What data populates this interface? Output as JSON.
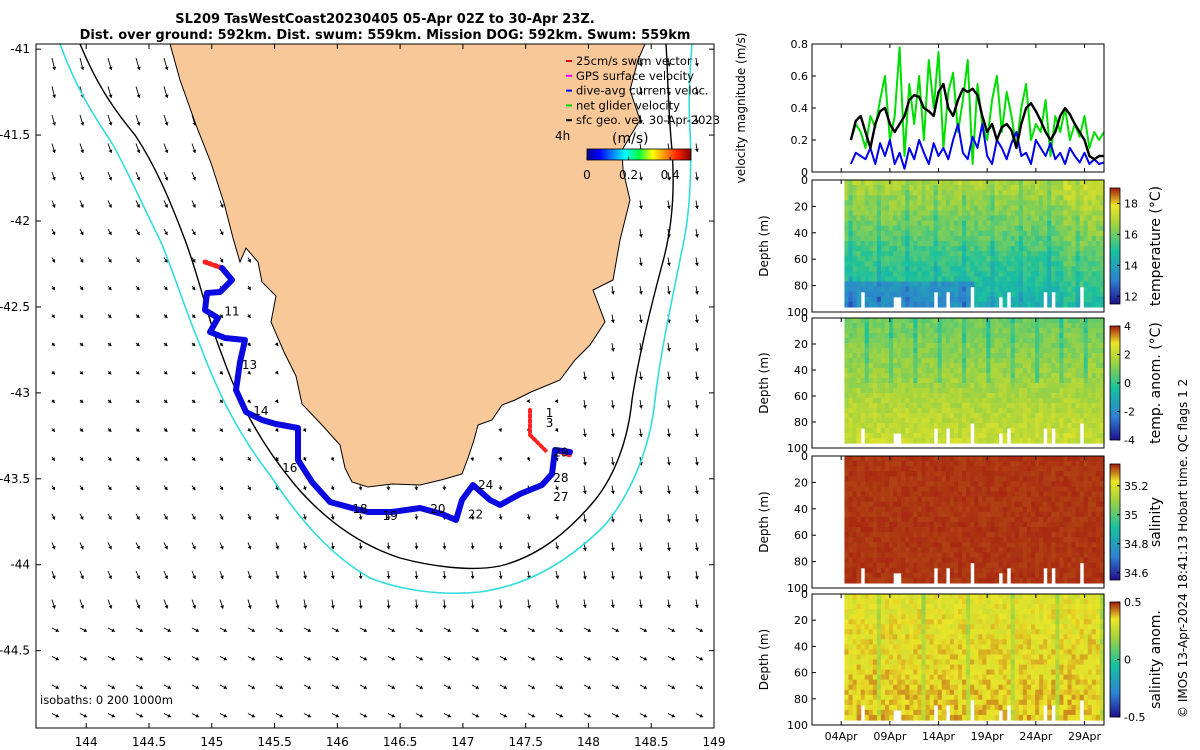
{
  "chart_data": [
    {
      "type": "map",
      "title_line1": "SL209 TasWestCoast20230405 05-Apr 02Z to 30-Apr 23Z.",
      "title_line2": "Dist. over ground: 592km. Dist. swum: 559km. Mission DOG: 592km. Swum: 559km",
      "xticks": [
        "144",
        "144.5",
        "145",
        "145.5",
        "146",
        "146.5",
        "147",
        "147.5",
        "148",
        "148.5",
        "149"
      ],
      "yticks": [
        "-41",
        "-41.5",
        "-42",
        "-42.5",
        "-43",
        "-43.5",
        "-44",
        "-44.5"
      ],
      "xlim": [
        143.6,
        149.0
      ],
      "ylim": [
        -44.95,
        -40.97
      ],
      "legend": [
        {
          "label": "25cm/s swim vector",
          "color": "#e8000b"
        },
        {
          "label": "GPS surface velocity",
          "color": "#ff00ff"
        },
        {
          "label": "dive-avg current veloc.",
          "color": "#0000ff"
        },
        {
          "label": "net glider velocity",
          "color": "#00cc00"
        },
        {
          "label": "sfc geo. vel. 30-Apr-2023",
          "color": "#000000"
        }
      ],
      "time_label": "4h",
      "colorbar": {
        "label": "(m/s)",
        "ticks": [
          "0",
          "0.2",
          "0.4"
        ],
        "range": [
          0,
          0.5
        ]
      },
      "day_labels": [
        {
          "day": "11",
          "lon": 145.1,
          "lat": -42.55
        },
        {
          "day": "13",
          "lon": 145.24,
          "lat": -42.86
        },
        {
          "day": "14",
          "lon": 145.33,
          "lat": -43.13
        },
        {
          "day": "16",
          "lon": 145.56,
          "lat": -43.46
        },
        {
          "day": "18",
          "lon": 146.12,
          "lat": -43.7
        },
        {
          "day": "19",
          "lon": 146.36,
          "lat": -43.74
        },
        {
          "day": "20",
          "lon": 146.74,
          "lat": -43.7
        },
        {
          "day": "22",
          "lon": 147.04,
          "lat": -43.73
        },
        {
          "day": "24",
          "lon": 147.12,
          "lat": -43.56
        },
        {
          "day": "27",
          "lon": 147.72,
          "lat": -43.63
        },
        {
          "day": "28",
          "lon": 147.72,
          "lat": -43.52
        },
        {
          "day": "29",
          "lon": 147.72,
          "lat": -43.37
        },
        {
          "day": "1",
          "lon": 147.66,
          "lat": -43.14
        },
        {
          "day": "3",
          "lon": 147.66,
          "lat": -43.2
        }
      ],
      "isobath_label": "isobaths: 0   200  1000m"
    },
    {
      "type": "line",
      "ylabel": "velocity magnitude (m/s)",
      "ylim": [
        0,
        0.8
      ],
      "yticks": [
        "0",
        "0.2",
        "0.4",
        "0.6",
        "0.8"
      ],
      "xlim_days": [
        1,
        31
      ],
      "series": [
        {
          "name": "net glider velocity",
          "color": "#00dd00",
          "x": [
            5.0,
            5.5,
            6.0,
            6.5,
            7.0,
            7.5,
            8.0,
            8.5,
            9.0,
            9.5,
            10.0,
            10.5,
            11.0,
            11.5,
            12.0,
            12.5,
            13.0,
            13.5,
            14.0,
            14.5,
            15.0,
            15.5,
            16.0,
            16.5,
            17.0,
            17.5,
            18.0,
            18.5,
            19.0,
            19.5,
            20.0,
            20.5,
            21.0,
            21.5,
            22.0,
            22.5,
            23.0,
            23.5,
            24.0,
            24.5,
            25.0,
            25.5,
            26.0,
            26.5,
            27.0,
            27.5,
            28.0,
            28.5,
            29.0,
            29.5,
            30.0,
            30.5,
            31.0
          ],
          "values": [
            0.2,
            0.3,
            0.25,
            0.15,
            0.35,
            0.28,
            0.45,
            0.6,
            0.2,
            0.35,
            0.78,
            0.1,
            0.55,
            0.3,
            0.6,
            0.2,
            0.7,
            0.4,
            0.75,
            0.15,
            0.5,
            0.62,
            0.25,
            0.45,
            0.7,
            0.05,
            0.55,
            0.3,
            0.2,
            0.45,
            0.6,
            0.25,
            0.5,
            0.35,
            0.15,
            0.4,
            0.55,
            0.2,
            0.3,
            0.25,
            0.45,
            0.1,
            0.35,
            0.25,
            0.4,
            0.2,
            0.3,
            0.22,
            0.35,
            0.15,
            0.25,
            0.2,
            0.25
          ]
        },
        {
          "name": "dive-avg current veloc.",
          "color": "#0000ee",
          "x": [
            5.0,
            5.5,
            6.0,
            6.5,
            7.0,
            7.5,
            8.0,
            8.5,
            9.0,
            9.5,
            10.0,
            10.5,
            11.0,
            11.5,
            12.0,
            12.5,
            13.0,
            13.5,
            14.0,
            14.5,
            15.0,
            15.5,
            16.0,
            16.5,
            17.0,
            17.5,
            18.0,
            18.5,
            19.0,
            19.5,
            20.0,
            20.5,
            21.0,
            21.5,
            22.0,
            22.5,
            23.0,
            23.5,
            24.0,
            24.5,
            25.0,
            25.5,
            26.0,
            26.5,
            27.0,
            27.5,
            28.0,
            28.5,
            29.0,
            29.5,
            30.0,
            30.5,
            31.0
          ],
          "values": [
            0.05,
            0.12,
            0.1,
            0.08,
            0.15,
            0.05,
            0.18,
            0.1,
            0.2,
            0.05,
            0.12,
            0.02,
            0.15,
            0.08,
            0.2,
            0.12,
            0.05,
            0.18,
            0.1,
            0.15,
            0.08,
            0.2,
            0.3,
            0.12,
            0.08,
            0.22,
            0.15,
            0.3,
            0.1,
            0.05,
            0.2,
            0.15,
            0.08,
            0.18,
            0.25,
            0.1,
            0.12,
            0.05,
            0.2,
            0.15,
            0.1,
            0.18,
            0.08,
            0.12,
            0.05,
            0.15,
            0.1,
            0.06,
            0.12,
            0.05,
            0.08,
            0.05,
            0.06
          ]
        },
        {
          "name": "sfc geo. vel.",
          "color": "#000000",
          "x": [
            5.0,
            5.5,
            6.0,
            6.5,
            7.0,
            7.5,
            8.0,
            8.5,
            9.0,
            9.5,
            10.0,
            10.5,
            11.0,
            11.5,
            12.0,
            12.5,
            13.0,
            13.5,
            14.0,
            14.5,
            15.0,
            15.5,
            16.0,
            16.5,
            17.0,
            17.5,
            18.0,
            18.5,
            19.0,
            19.5,
            20.0,
            20.5,
            21.0,
            21.5,
            22.0,
            22.5,
            23.0,
            23.5,
            24.0,
            24.5,
            25.0,
            25.5,
            26.0,
            26.5,
            27.0,
            27.5,
            28.0,
            28.5,
            29.0,
            29.5,
            30.0,
            30.5,
            31.0
          ],
          "values": [
            0.2,
            0.32,
            0.35,
            0.25,
            0.15,
            0.3,
            0.38,
            0.4,
            0.3,
            0.25,
            0.3,
            0.35,
            0.45,
            0.48,
            0.47,
            0.4,
            0.38,
            0.35,
            0.5,
            0.55,
            0.4,
            0.35,
            0.45,
            0.52,
            0.5,
            0.52,
            0.48,
            0.35,
            0.25,
            0.3,
            0.2,
            0.28,
            0.3,
            0.26,
            0.15,
            0.3,
            0.4,
            0.43,
            0.38,
            0.32,
            0.25,
            0.2,
            0.25,
            0.35,
            0.4,
            0.36,
            0.3,
            0.25,
            0.2,
            0.1,
            0.08,
            0.1,
            0.1
          ]
        }
      ]
    },
    {
      "type": "heatmap",
      "variable": "temperature",
      "colorbar_label": "temperature (°C)",
      "colorbar_ticks": [
        "12",
        "14",
        "16",
        "18"
      ],
      "range": [
        11.5,
        19
      ],
      "ylabel": "Depth (m)",
      "yticks": [
        "0",
        "20",
        "40",
        "60",
        "80",
        "100"
      ],
      "ylim": [
        0,
        100
      ]
    },
    {
      "type": "heatmap",
      "variable": "temperature anomaly",
      "colorbar_label": "temp. anom. (°C)",
      "colorbar_ticks": [
        "-4",
        "-2",
        "0",
        "2",
        "4"
      ],
      "range": [
        -4,
        4
      ],
      "ylabel": "Depth (m)",
      "yticks": [
        "0",
        "20",
        "40",
        "60",
        "80",
        "100"
      ],
      "ylim": [
        0,
        100
      ]
    },
    {
      "type": "heatmap",
      "variable": "salinity",
      "colorbar_label": "salinity",
      "colorbar_ticks": [
        "34.6",
        "34.8",
        "35",
        "35.2"
      ],
      "range": [
        34.55,
        35.35
      ],
      "ylabel": "Depth (m)",
      "yticks": [
        "0",
        "20",
        "40",
        "60",
        "80",
        "100"
      ],
      "ylim": [
        0,
        100
      ]
    },
    {
      "type": "heatmap",
      "variable": "salinity anomaly",
      "colorbar_label": "salinity anom.",
      "colorbar_ticks": [
        "-0.5",
        "0",
        "0.5"
      ],
      "range": [
        -0.5,
        0.5
      ],
      "ylabel": "Depth (m)",
      "yticks": [
        "0",
        "20",
        "40",
        "60",
        "80",
        "100"
      ],
      "ylim": [
        0,
        100
      ],
      "xticks": [
        "04Apr",
        "09Apr",
        "14Apr",
        "19Apr",
        "24Apr",
        "29Apr"
      ],
      "xtick_days": [
        4,
        9,
        14,
        19,
        24,
        29
      ]
    }
  ],
  "watermark": "© IMOS 13-Apr-2024 18:41:13 Hobart time. QC flags 1  2",
  "colors": {
    "land": "#f9c898",
    "isobath200": "#000000",
    "isobath1000": "#33dddd",
    "track_red": "#ff2020",
    "track_blue": "#0a0ae0"
  }
}
